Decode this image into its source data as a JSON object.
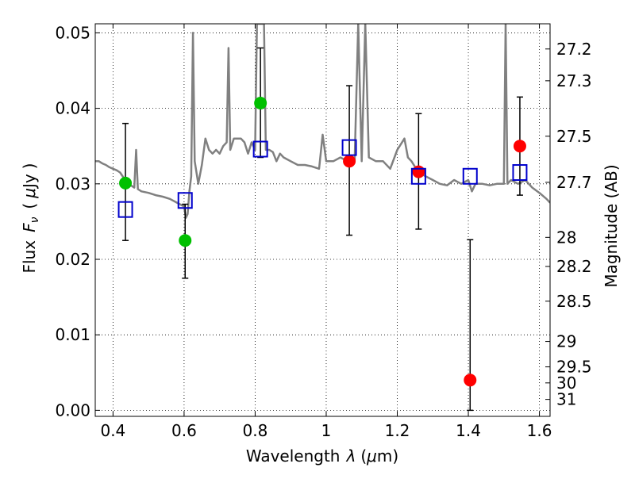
{
  "chart_data": {
    "type": "scatter",
    "xlabel": "Wavelength",
    "xlabel_symbol": "λ",
    "xlabel_unit_open": "(",
    "xlabel_unit_mu": "μ",
    "xlabel_unit_rest": "m)",
    "ylabel": "Flux",
    "ylabel_symbol": "F",
    "ylabel_symbol_sub": "ν",
    "ylabel_unit_open": "(",
    "ylabel_unit_mu": "μ",
    "ylabel_unit_rest": "Jy",
    "ylabel_unit_close": ")",
    "y2label": "Magnitude (AB)",
    "xlim": [
      0.35,
      1.63
    ],
    "ylim": [
      -0.0008,
      0.0512
    ],
    "x_ticks": [
      0.4,
      0.6,
      0.8,
      1.0,
      1.2,
      1.4,
      1.6
    ],
    "x_tick_labels": [
      "0.4",
      "0.6",
      "0.8",
      "1",
      "1.2",
      "1.4",
      "1.6"
    ],
    "y_ticks": [
      0.0,
      0.01,
      0.02,
      0.03,
      0.04,
      0.05
    ],
    "y_tick_labels": [
      "0.00",
      "0.01",
      "0.02",
      "0.03",
      "0.04",
      "0.05"
    ],
    "mag_ticks": [
      27.2,
      27.3,
      27.5,
      27.7,
      28,
      28.2,
      28.5,
      29,
      29.5,
      30,
      31
    ],
    "mag_tick_labels": [
      "27.2",
      "27.3",
      "27.5",
      "27.7",
      "28",
      "28.2",
      "28.5",
      "29",
      "29.5",
      "30",
      "31"
    ],
    "grid": true,
    "colors": {
      "spectrum": "#808080",
      "optical_points": "#00c000",
      "ir_points": "#ff0000",
      "model_points": "#0000cc",
      "errorbar": "#000000"
    },
    "series": [
      {
        "kind": "spectrum",
        "x": [
          0.35,
          0.36,
          0.37,
          0.38,
          0.39,
          0.4,
          0.41,
          0.42,
          0.43,
          0.44,
          0.45,
          0.46,
          0.465,
          0.47,
          0.48,
          0.5,
          0.52,
          0.54,
          0.56,
          0.58,
          0.6,
          0.605,
          0.61,
          0.615,
          0.62,
          0.625,
          0.63,
          0.64,
          0.65,
          0.66,
          0.67,
          0.68,
          0.69,
          0.7,
          0.71,
          0.72,
          0.725,
          0.73,
          0.74,
          0.75,
          0.76,
          0.77,
          0.78,
          0.79,
          0.8,
          0.805,
          0.81,
          0.815,
          0.82,
          0.825,
          0.83,
          0.84,
          0.85,
          0.86,
          0.87,
          0.88,
          0.9,
          0.92,
          0.94,
          0.96,
          0.98,
          0.99,
          1.0,
          1.02,
          1.04,
          1.06,
          1.08,
          1.09,
          1.1,
          1.11,
          1.12,
          1.14,
          1.16,
          1.18,
          1.2,
          1.22,
          1.23,
          1.24,
          1.26,
          1.28,
          1.3,
          1.32,
          1.34,
          1.36,
          1.38,
          1.4,
          1.41,
          1.42,
          1.44,
          1.46,
          1.48,
          1.5,
          1.505,
          1.51,
          1.52,
          1.54,
          1.56,
          1.58,
          1.6,
          1.62,
          1.63
        ],
        "y": [
          0.033,
          0.033,
          0.0327,
          0.0325,
          0.0322,
          0.032,
          0.0318,
          0.0315,
          0.0308,
          0.03,
          0.0298,
          0.0295,
          0.0345,
          0.0293,
          0.029,
          0.0288,
          0.0285,
          0.0283,
          0.028,
          0.0275,
          0.027,
          0.0255,
          0.026,
          0.029,
          0.031,
          0.05,
          0.033,
          0.03,
          0.0325,
          0.036,
          0.0345,
          0.034,
          0.0345,
          0.034,
          0.035,
          0.0355,
          0.048,
          0.0345,
          0.036,
          0.036,
          0.036,
          0.0355,
          0.034,
          0.0355,
          0.0345,
          0.0512,
          0.0512,
          0.0512,
          0.0512,
          0.0512,
          0.0345,
          0.0345,
          0.0342,
          0.033,
          0.034,
          0.0335,
          0.033,
          0.0325,
          0.0325,
          0.0323,
          0.032,
          0.0365,
          0.033,
          0.033,
          0.0335,
          0.033,
          0.033,
          0.0512,
          0.033,
          0.0512,
          0.0335,
          0.033,
          0.033,
          0.032,
          0.0345,
          0.036,
          0.0335,
          0.033,
          0.0315,
          0.031,
          0.0305,
          0.03,
          0.0298,
          0.0305,
          0.03,
          0.0305,
          0.029,
          0.03,
          0.03,
          0.0298,
          0.03,
          0.03,
          0.0512,
          0.03,
          0.0305,
          0.03,
          0.0305,
          0.0295,
          0.0288,
          0.028,
          0.0275
        ]
      },
      {
        "kind": "points",
        "marker": "circle",
        "color_key": "optical_points",
        "x": [
          0.435,
          0.603,
          0.815
        ],
        "y": [
          0.0301,
          0.0225,
          0.0407
        ],
        "yerr_low": [
          0.0225,
          0.0175,
          0.0335
        ],
        "yerr_high": [
          0.038,
          0.0273,
          0.048
        ]
      },
      {
        "kind": "points",
        "marker": "circle",
        "color_key": "ir_points",
        "x": [
          1.065,
          1.26,
          1.405,
          1.545
        ],
        "y": [
          0.033,
          0.0316,
          0.004,
          0.035
        ],
        "yerr_low": [
          0.0232,
          0.024,
          0.0,
          0.0285
        ],
        "yerr_high": [
          0.043,
          0.0393,
          0.0226,
          0.0415
        ]
      },
      {
        "kind": "points",
        "marker": "square",
        "color_key": "model_points",
        "x": [
          0.435,
          0.603,
          0.815,
          1.065,
          1.26,
          1.405,
          1.545
        ],
        "y": [
          0.0266,
          0.0278,
          0.0346,
          0.0348,
          0.031,
          0.031,
          0.0315
        ]
      }
    ]
  }
}
